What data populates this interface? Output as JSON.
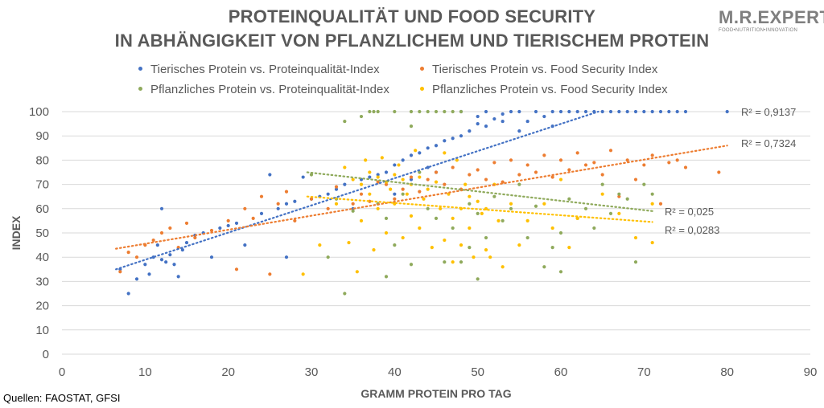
{
  "header": {
    "title_line1": "PROTEINQUALITÄT UND FOOD SECURITY",
    "title_line2": "IN ABHÄNGIGKEIT VON PFLANZLICHEM UND TIERISCHEM PROTEIN"
  },
  "logo": {
    "main": "M.R.EXPERT",
    "sub": "FOOD•NUTRITION•INNOVATION"
  },
  "source": "Quellen: FAOSTAT, GFSI",
  "colors": {
    "blue": "#4472c4",
    "orange": "#ed7d31",
    "green": "#8faa5c",
    "yellow": "#ffc000",
    "grid": "#d9d9d9",
    "text": "#595959"
  },
  "chart_data": {
    "type": "scatter",
    "title": "PROTEINQUALITÄT UND FOOD SECURITY IN ABHÄNGIGKEIT VON PFLANZLICHEM UND TIERISCHEM PROTEIN",
    "xlabel": "GRAMM PROTEIN PRO TAG",
    "ylabel": "INDEX",
    "xlim": [
      0,
      90
    ],
    "ylim": [
      0,
      100
    ],
    "xticks": [
      0,
      10,
      20,
      30,
      40,
      50,
      60,
      70,
      80,
      90
    ],
    "yticks": [
      0,
      10,
      20,
      30,
      40,
      50,
      60,
      70,
      80,
      90,
      100
    ],
    "grid": true,
    "legend_position": "top",
    "series": [
      {
        "name": "Tierisches Protein vs. Proteinqualität-Index",
        "color": "#4472c4",
        "trend": {
          "x": [
            6.5,
            64.5
          ],
          "y": [
            35,
            100
          ]
        },
        "r2_label": "R² = 0,9137",
        "points": [
          [
            7,
            35
          ],
          [
            8,
            25
          ],
          [
            9,
            31
          ],
          [
            10,
            37
          ],
          [
            10.5,
            33
          ],
          [
            11,
            40
          ],
          [
            11.5,
            45
          ],
          [
            12,
            39
          ],
          [
            12,
            60
          ],
          [
            12.5,
            38
          ],
          [
            13,
            41
          ],
          [
            13.5,
            37
          ],
          [
            14,
            32
          ],
          [
            14.5,
            43
          ],
          [
            15,
            46
          ],
          [
            16,
            49
          ],
          [
            17,
            50
          ],
          [
            18,
            40
          ],
          [
            19,
            52
          ],
          [
            20,
            53
          ],
          [
            21,
            54
          ],
          [
            22,
            45
          ],
          [
            24,
            58
          ],
          [
            25,
            74
          ],
          [
            26,
            60
          ],
          [
            27,
            62
          ],
          [
            27,
            40
          ],
          [
            28,
            63
          ],
          [
            29,
            73
          ],
          [
            30,
            64
          ],
          [
            31,
            65
          ],
          [
            32,
            66
          ],
          [
            33,
            68
          ],
          [
            34,
            70
          ],
          [
            35,
            60
          ],
          [
            36,
            72
          ],
          [
            37,
            73
          ],
          [
            38,
            74
          ],
          [
            39,
            75
          ],
          [
            40,
            78
          ],
          [
            40,
            66
          ],
          [
            41,
            80
          ],
          [
            42,
            82
          ],
          [
            42,
            72
          ],
          [
            43,
            83
          ],
          [
            44,
            85
          ],
          [
            44,
            77
          ],
          [
            45,
            86
          ],
          [
            45,
            75
          ],
          [
            46,
            88
          ],
          [
            47,
            89
          ],
          [
            48,
            90
          ],
          [
            48,
            100
          ],
          [
            49,
            92
          ],
          [
            50,
            95
          ],
          [
            50,
            98
          ],
          [
            51,
            94
          ],
          [
            51,
            100
          ],
          [
            52,
            97
          ],
          [
            53,
            96
          ],
          [
            53,
            99
          ],
          [
            54,
            100
          ],
          [
            55,
            100
          ],
          [
            55,
            92
          ],
          [
            56,
            96
          ],
          [
            57,
            100
          ],
          [
            58,
            98
          ],
          [
            59,
            100
          ],
          [
            59,
            94
          ],
          [
            60,
            100
          ],
          [
            61,
            100
          ],
          [
            62,
            100
          ],
          [
            63,
            100
          ],
          [
            64,
            100
          ],
          [
            65,
            100
          ],
          [
            66,
            100
          ],
          [
            67,
            100
          ],
          [
            68,
            100
          ],
          [
            69,
            100
          ],
          [
            70,
            100
          ],
          [
            71,
            100
          ],
          [
            72,
            100
          ],
          [
            73,
            100
          ],
          [
            74,
            100
          ],
          [
            75,
            100
          ],
          [
            80,
            100
          ]
        ]
      },
      {
        "name": "Tierisches Protein vs. Food Security Index",
        "color": "#ed7d31",
        "trend": {
          "x": [
            6.5,
            80
          ],
          "y": [
            43.5,
            86
          ]
        },
        "r2_label": "R² = 0,7324",
        "points": [
          [
            7,
            34
          ],
          [
            8,
            42
          ],
          [
            9,
            40
          ],
          [
            10,
            45
          ],
          [
            11,
            47
          ],
          [
            12,
            50
          ],
          [
            13,
            52
          ],
          [
            14,
            44
          ],
          [
            15,
            54
          ],
          [
            16,
            48
          ],
          [
            18,
            51
          ],
          [
            20,
            55
          ],
          [
            21,
            35
          ],
          [
            22,
            60
          ],
          [
            23,
            56
          ],
          [
            24,
            65
          ],
          [
            25,
            33
          ],
          [
            26,
            62
          ],
          [
            27,
            67
          ],
          [
            28,
            55
          ],
          [
            30,
            64
          ],
          [
            32,
            60
          ],
          [
            33,
            69
          ],
          [
            35,
            62
          ],
          [
            36,
            66
          ],
          [
            37,
            63
          ],
          [
            38,
            71
          ],
          [
            39,
            70
          ],
          [
            40,
            64
          ],
          [
            41,
            68
          ],
          [
            42,
            73
          ],
          [
            43,
            67
          ],
          [
            44,
            72
          ],
          [
            45,
            75
          ],
          [
            46,
            70
          ],
          [
            47,
            77
          ],
          [
            48,
            68
          ],
          [
            49,
            74
          ],
          [
            50,
            76
          ],
          [
            51,
            72
          ],
          [
            52,
            79
          ],
          [
            53,
            71
          ],
          [
            54,
            80
          ],
          [
            55,
            74
          ],
          [
            56,
            78
          ],
          [
            57,
            75
          ],
          [
            58,
            82
          ],
          [
            59,
            73
          ],
          [
            60,
            80
          ],
          [
            61,
            76
          ],
          [
            62,
            83
          ],
          [
            63,
            78
          ],
          [
            64,
            79
          ],
          [
            65,
            74
          ],
          [
            66,
            84
          ],
          [
            67,
            65
          ],
          [
            68,
            80
          ],
          [
            69,
            72
          ],
          [
            70,
            78
          ],
          [
            71,
            82
          ],
          [
            72,
            62
          ],
          [
            73,
            79
          ],
          [
            74,
            80
          ],
          [
            75,
            77
          ],
          [
            79,
            75
          ]
        ]
      },
      {
        "name": "Pflanzliches Protein vs. Proteinqualität-Index",
        "color": "#8faa5c",
        "trend": {
          "x": [
            29.5,
            71
          ],
          "y": [
            75,
            59
          ]
        },
        "r2_label": "R² = 0,025",
        "points": [
          [
            30,
            74
          ],
          [
            32,
            40
          ],
          [
            33,
            64
          ],
          [
            34,
            96
          ],
          [
            34,
            25
          ],
          [
            35,
            59
          ],
          [
            36,
            98
          ],
          [
            37,
            100
          ],
          [
            37.5,
            100
          ],
          [
            38,
            100
          ],
          [
            38,
            62
          ],
          [
            39,
            56
          ],
          [
            39,
            32
          ],
          [
            40,
            45
          ],
          [
            40,
            100
          ],
          [
            41,
            66
          ],
          [
            42,
            100
          ],
          [
            42,
            94
          ],
          [
            42,
            37
          ],
          [
            43,
            100
          ],
          [
            43,
            75
          ],
          [
            44,
            60
          ],
          [
            44,
            100
          ],
          [
            45,
            56
          ],
          [
            45,
            100
          ],
          [
            46,
            38
          ],
          [
            46,
            100
          ],
          [
            47,
            100
          ],
          [
            47,
            52
          ],
          [
            48,
            38
          ],
          [
            48,
            100
          ],
          [
            49,
            62
          ],
          [
            49,
            44
          ],
          [
            50,
            31
          ],
          [
            50,
            58
          ],
          [
            51,
            48
          ],
          [
            52,
            65
          ],
          [
            53,
            55
          ],
          [
            54,
            60
          ],
          [
            55,
            70
          ],
          [
            56,
            48
          ],
          [
            57,
            61
          ],
          [
            58,
            36
          ],
          [
            59,
            44
          ],
          [
            60,
            34
          ],
          [
            60,
            50
          ],
          [
            61,
            64
          ],
          [
            62,
            56
          ],
          [
            63,
            60
          ],
          [
            64,
            52
          ],
          [
            65,
            70
          ],
          [
            66,
            58
          ],
          [
            67,
            66
          ],
          [
            68,
            64
          ],
          [
            69,
            38
          ],
          [
            70,
            70
          ],
          [
            71,
            66
          ]
        ]
      },
      {
        "name": "Pflanzliches Protein vs. Food Security Index",
        "color": "#ffc000",
        "trend": {
          "x": [
            29.5,
            71
          ],
          "y": [
            65,
            54.5
          ]
        },
        "r2_label": "R² = 0,0283",
        "points": [
          [
            29,
            33
          ],
          [
            31,
            45
          ],
          [
            33,
            62
          ],
          [
            34,
            77
          ],
          [
            34.5,
            46
          ],
          [
            35,
            72
          ],
          [
            35.5,
            34
          ],
          [
            36,
            70
          ],
          [
            36,
            55
          ],
          [
            36.5,
            80
          ],
          [
            37,
            75
          ],
          [
            37,
            66
          ],
          [
            37.5,
            43
          ],
          [
            38,
            73
          ],
          [
            38,
            60
          ],
          [
            38.5,
            81
          ],
          [
            39,
            71
          ],
          [
            39,
            50
          ],
          [
            39.5,
            68
          ],
          [
            40,
            74
          ],
          [
            40,
            62
          ],
          [
            40.5,
            78
          ],
          [
            41,
            72
          ],
          [
            41,
            48
          ],
          [
            41.5,
            66
          ],
          [
            42,
            70
          ],
          [
            42,
            57
          ],
          [
            42.5,
            84
          ],
          [
            43,
            73
          ],
          [
            43,
            52
          ],
          [
            43.5,
            64
          ],
          [
            44,
            68
          ],
          [
            44.5,
            44
          ],
          [
            45,
            71
          ],
          [
            45.5,
            60
          ],
          [
            46,
            83
          ],
          [
            46,
            47
          ],
          [
            46.5,
            66
          ],
          [
            47,
            56
          ],
          [
            47,
            38
          ],
          [
            47.5,
            80
          ],
          [
            48,
            60
          ],
          [
            48,
            45
          ],
          [
            48.5,
            70
          ],
          [
            49,
            65
          ],
          [
            49,
            52
          ],
          [
            49.5,
            40
          ],
          [
            50,
            63
          ],
          [
            50.5,
            58
          ],
          [
            51,
            43
          ],
          [
            51,
            60
          ],
          [
            51.5,
            40
          ],
          [
            52,
            70
          ],
          [
            52.5,
            55
          ],
          [
            53,
            36
          ],
          [
            54,
            62
          ],
          [
            55,
            45
          ],
          [
            56,
            55
          ],
          [
            58,
            62
          ],
          [
            59,
            52
          ],
          [
            60,
            72
          ],
          [
            61,
            44
          ],
          [
            62,
            56
          ],
          [
            65,
            66
          ],
          [
            67,
            58
          ],
          [
            69,
            48
          ],
          [
            71,
            46
          ],
          [
            71,
            62
          ]
        ]
      }
    ]
  }
}
